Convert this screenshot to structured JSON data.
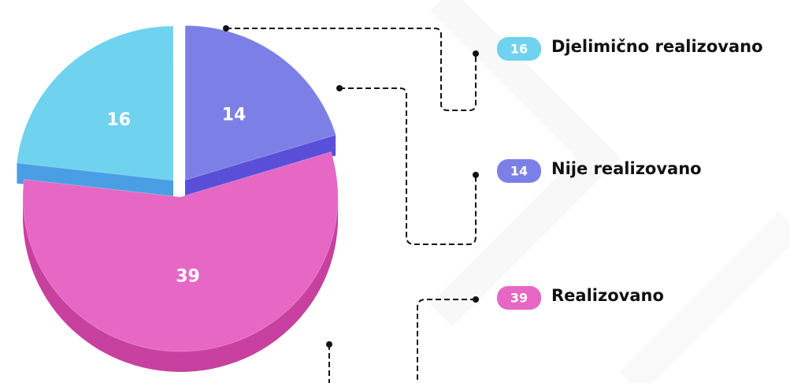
{
  "chart_data": {
    "type": "pie",
    "categories": [
      "Djelimično realizovano",
      "Nije realizovano",
      "Realizovano"
    ],
    "values": [
      16,
      14,
      39
    ],
    "colors": [
      "#6fd2ef",
      "#7c80e6",
      "#e767c4"
    ],
    "side_colors": [
      "#4a9ee3",
      "#5a4fd8",
      "#c8419f"
    ]
  }
}
